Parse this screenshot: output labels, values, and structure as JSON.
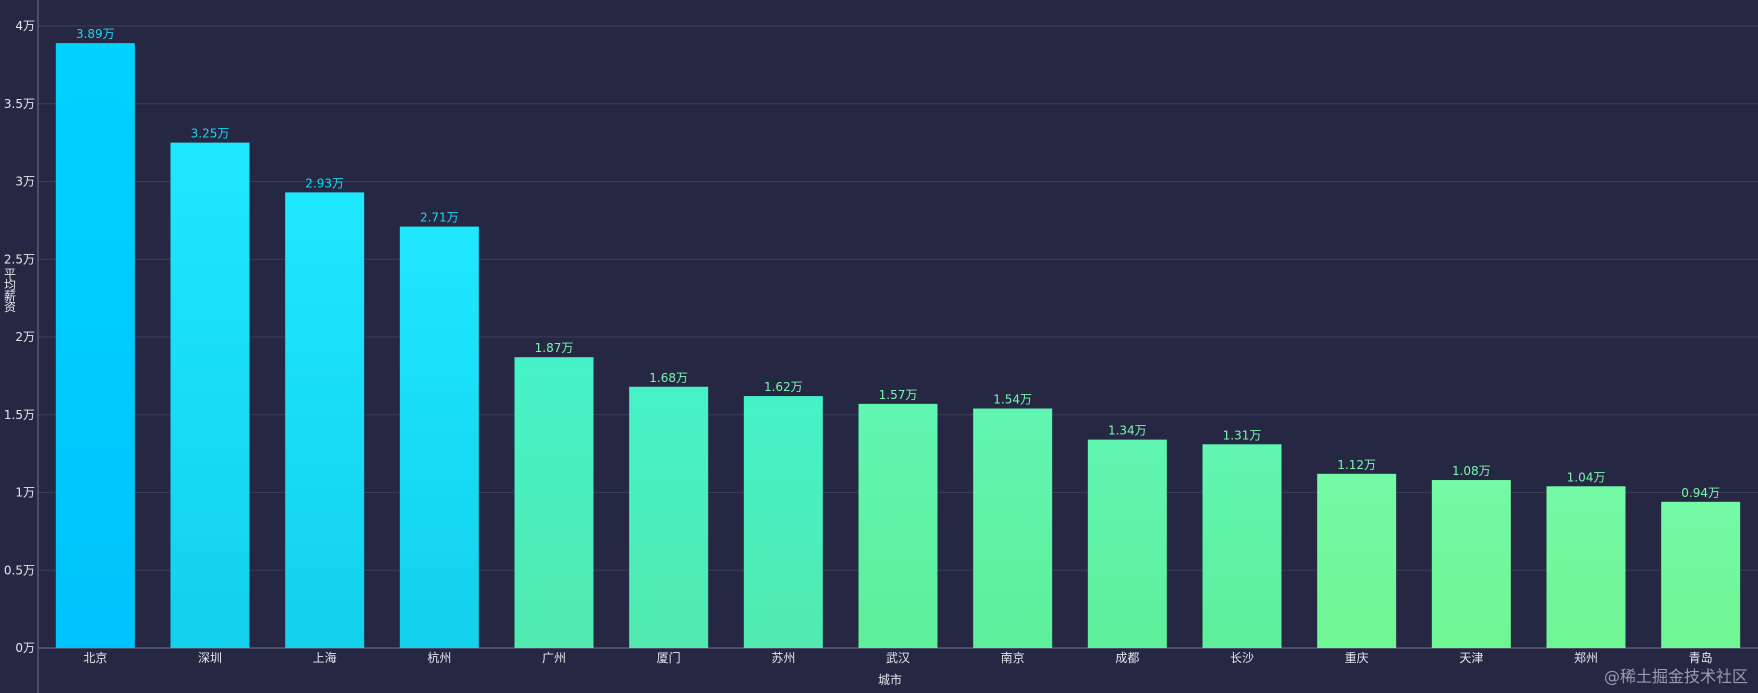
{
  "chart_data": {
    "type": "bar",
    "title": "",
    "xlabel": "城市",
    "ylabel": "平均薪资",
    "ylim": [
      0,
      4
    ],
    "yticks": [
      "0万",
      "0.5万",
      "1万",
      "1.5万",
      "2万",
      "2.5万",
      "3万",
      "3.5万",
      "4万"
    ],
    "categories": [
      "北京",
      "深圳",
      "上海",
      "杭州",
      "广州",
      "厦门",
      "苏州",
      "武汉",
      "南京",
      "成都",
      "长沙",
      "重庆",
      "天津",
      "郑州",
      "青岛"
    ],
    "values": [
      3.89,
      3.25,
      2.93,
      2.71,
      1.87,
      1.68,
      1.62,
      1.57,
      1.54,
      1.34,
      1.31,
      1.12,
      1.08,
      1.04,
      0.94
    ],
    "value_labels": [
      "3.89万",
      "3.25万",
      "2.93万",
      "2.71万",
      "1.87万",
      "1.68万",
      "1.62万",
      "1.57万",
      "1.54万",
      "1.34万",
      "1.31万",
      "1.12万",
      "1.08万",
      "1.04万",
      "0.94万"
    ],
    "unit_suffix": "万",
    "grid": true,
    "colors": {
      "background": "#262843",
      "blue_top": "#1ee8ff",
      "blue_bottom": "#00c6ff",
      "green_top": "#5cf0b8",
      "green_bottom": "#80ff88",
      "label_blue": "#1ad6f0",
      "label_green": "#79f7b0",
      "grid": "#3a3d58"
    }
  },
  "watermark": "@稀土掘金技术社区"
}
